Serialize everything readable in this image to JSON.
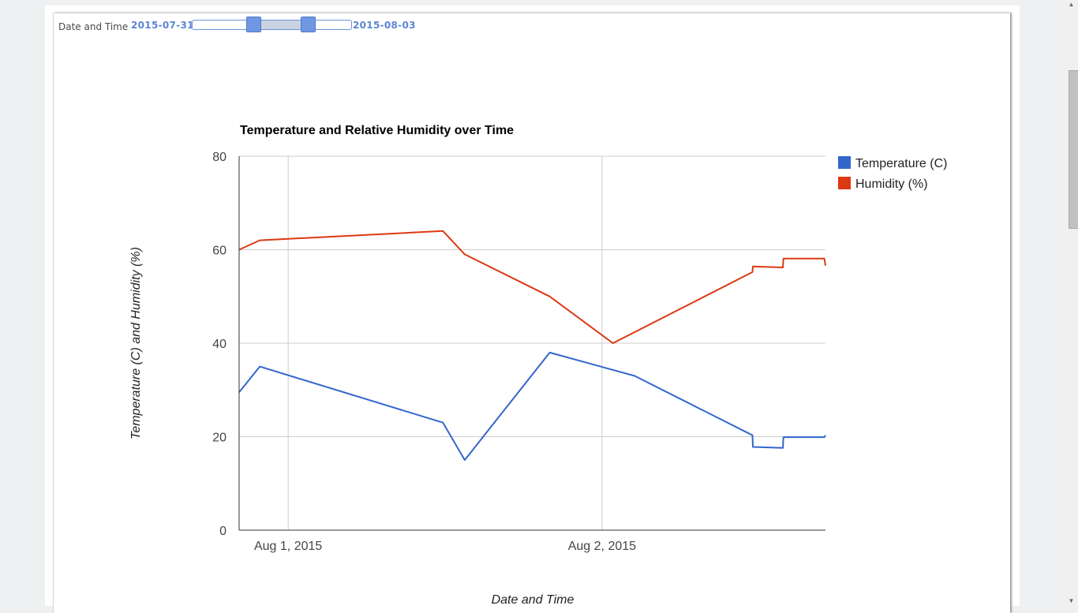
{
  "filter": {
    "label": "Date and Time",
    "start": "2015-07-31",
    "end": "2015-08-03"
  },
  "colors": {
    "temperature": "#3366cc",
    "humidity": "#dc3912",
    "slider_accent": "#6f97e2"
  },
  "chart_data": {
    "type": "line",
    "title": "Temperature and Relative Humidity over Time",
    "xlabel": "Date and Time",
    "ylabel": "Temperature (C) and Humidity (%)",
    "ylim": [
      0,
      80
    ],
    "yticks": [
      0,
      20,
      40,
      60,
      80
    ],
    "xlim": [
      "2015-07-31T20:15",
      "2015-08-02T17:05"
    ],
    "xticks": [
      {
        "label": "Aug 1, 2015",
        "t": "2015-08-01T00:00"
      },
      {
        "label": "Aug 2, 2015",
        "t": "2015-08-02T00:00"
      }
    ],
    "grid": true,
    "legend_position": "right",
    "series": [
      {
        "name": "Temperature (C)",
        "points": [
          [
            "2015-07-31T20:15",
            29.5
          ],
          [
            "2015-07-31T21:50",
            35
          ],
          [
            "2015-08-01T11:50",
            23
          ],
          [
            "2015-08-01T13:30",
            15
          ],
          [
            "2015-08-01T20:00",
            38
          ],
          [
            "2015-08-02T02:30",
            33
          ],
          [
            "2015-08-02T11:30",
            20.3
          ],
          [
            "2015-08-02T11:32",
            17.8
          ],
          [
            "2015-08-02T13:50",
            17.6
          ],
          [
            "2015-08-02T13:52",
            19.9
          ],
          [
            "2015-08-02T17:00",
            19.9
          ],
          [
            "2015-08-02T17:05",
            20.3
          ]
        ]
      },
      {
        "name": "Humidity (%)",
        "points": [
          [
            "2015-07-31T20:15",
            60
          ],
          [
            "2015-07-31T21:50",
            62
          ],
          [
            "2015-08-01T11:50",
            64
          ],
          [
            "2015-08-01T13:30",
            59
          ],
          [
            "2015-08-01T20:00",
            50
          ],
          [
            "2015-08-02T00:50",
            40
          ],
          [
            "2015-08-02T11:30",
            55.2
          ],
          [
            "2015-08-02T11:32",
            56.4
          ],
          [
            "2015-08-02T13:50",
            56.2
          ],
          [
            "2015-08-02T13:52",
            58.1
          ],
          [
            "2015-08-02T17:00",
            58.1
          ],
          [
            "2015-08-02T17:05",
            56.6
          ]
        ]
      }
    ]
  }
}
